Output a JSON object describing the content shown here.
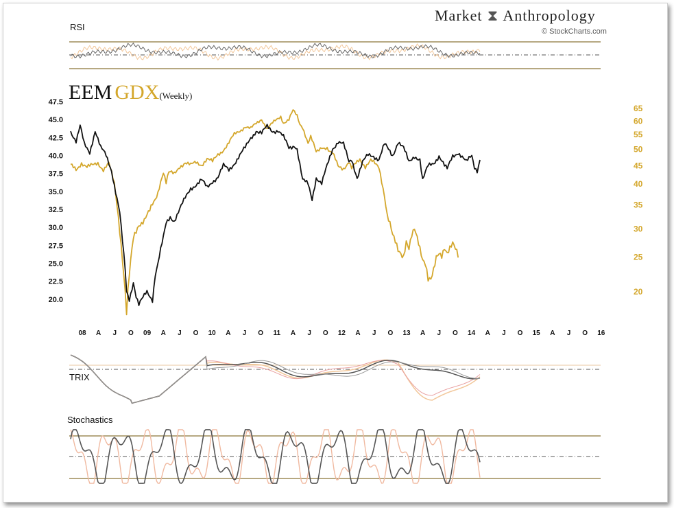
{
  "brand": {
    "name_left": "Market",
    "name_right": "Anthropology",
    "credit": "© StockCharts.com"
  },
  "colors": {
    "eem": "#111111",
    "gdx": "#d4a72c",
    "grid_gold": "#8a7436",
    "trix_signal_eem": "#999999",
    "trix_signal_gdx": "#e9a0a0"
  },
  "panels": {
    "rsi_label": "RSI",
    "trix_label": "TRIX",
    "stoch_label": "Stochastics"
  },
  "chart_data": [
    {
      "type": "line",
      "title_parts": [
        "EEM",
        "GDX",
        "(Weekly)"
      ],
      "left_axis_ticks": [
        47.5,
        45.0,
        42.5,
        40.0,
        37.5,
        35.0,
        32.5,
        30.0,
        27.5,
        25.0,
        22.5,
        20.0
      ],
      "right_axis_ticks": [
        65,
        60,
        55,
        50,
        45,
        40,
        35,
        30,
        25,
        20
      ],
      "x_tick_labels": [
        "08",
        "A",
        "J",
        "O",
        "09",
        "A",
        "J",
        "O",
        "10",
        "A",
        "J",
        "O",
        "11",
        "A",
        "J",
        "O",
        "12",
        "A",
        "J",
        "O",
        "13",
        "A",
        "J",
        "O",
        "14",
        "A",
        "J",
        "O",
        "15",
        "A",
        "J",
        "O",
        "16"
      ],
      "ylim_left": [
        17.5,
        47.5
      ],
      "ylim_right": [
        17,
        68
      ],
      "series": [
        {
          "name": "EEM",
          "values": [
            [
              0,
              43.5
            ],
            [
              4,
              42.0
            ],
            [
              7,
              44.0
            ],
            [
              10,
              41.5
            ],
            [
              14,
              40.5
            ],
            [
              18,
              43.5
            ],
            [
              22,
              41.0
            ],
            [
              26,
              40.0
            ],
            [
              30,
              38.0
            ],
            [
              34,
              34.0
            ],
            [
              36,
              32.0
            ],
            [
              38,
              28.0
            ],
            [
              40,
              24.0
            ],
            [
              41,
              21.0
            ],
            [
              43,
              20.0
            ],
            [
              46,
              22.5
            ],
            [
              48,
              20.5
            ],
            [
              50,
              19.2
            ],
            [
              52,
              19.8
            ],
            [
              56,
              21.0
            ],
            [
              60,
              20.0
            ],
            [
              62,
              23.5
            ],
            [
              64,
              25.0
            ],
            [
              66,
              26.8
            ],
            [
              68,
              28.5
            ],
            [
              70,
              30.5
            ],
            [
              73,
              31.5
            ],
            [
              76,
              31.0
            ],
            [
              80,
              32.5
            ],
            [
              84,
              34.0
            ],
            [
              88,
              35.5
            ],
            [
              92,
              36.0
            ],
            [
              96,
              36.5
            ],
            [
              100,
              35.5
            ],
            [
              104,
              36.5
            ],
            [
              108,
              37.0
            ],
            [
              112,
              38.5
            ],
            [
              116,
              38.0
            ],
            [
              120,
              39.0
            ],
            [
              124,
              40.0
            ],
            [
              128,
              41.0
            ],
            [
              132,
              42.5
            ],
            [
              136,
              43.5
            ],
            [
              140,
              43.0
            ],
            [
              144,
              44.0
            ],
            [
              148,
              43.5
            ],
            [
              152,
              43.5
            ],
            [
              156,
              42.5
            ],
            [
              160,
              41.0
            ],
            [
              164,
              41.5
            ],
            [
              166,
              41.0
            ],
            [
              170,
              36.5
            ],
            [
              174,
              36.0
            ],
            [
              177,
              34.0
            ],
            [
              180,
              37.0
            ],
            [
              184,
              36.0
            ],
            [
              188,
              38.5
            ],
            [
              192,
              41.0
            ],
            [
              196,
              42.0
            ],
            [
              200,
              41.5
            ],
            [
              204,
              39.0
            ],
            [
              206,
              39.5
            ],
            [
              210,
              37.0
            ],
            [
              214,
              39.0
            ],
            [
              218,
              40.0
            ],
            [
              222,
              40.0
            ],
            [
              226,
              39.5
            ],
            [
              230,
              41.5
            ],
            [
              234,
              40.5
            ],
            [
              236,
              40.0
            ],
            [
              240,
              42.0
            ],
            [
              244,
              41.0
            ],
            [
              248,
              39.0
            ],
            [
              252,
              40.0
            ],
            [
              256,
              39.5
            ],
            [
              258,
              36.5
            ],
            [
              262,
              38.5
            ],
            [
              266,
              39.0
            ],
            [
              270,
              40.0
            ],
            [
              274,
              38.5
            ],
            [
              276,
              38.0
            ],
            [
              280,
              40.0
            ],
            [
              284,
              40.5
            ],
            [
              288,
              39.5
            ],
            [
              290,
              39.0
            ],
            [
              294,
              40.0
            ],
            [
              296,
              38.5
            ],
            [
              298,
              38.0
            ],
            [
              300,
              39.5
            ]
          ]
        },
        {
          "name": "GDX",
          "values": [
            [
              0,
              45
            ],
            [
              4,
              44
            ],
            [
              8,
              46
            ],
            [
              12,
              44.5
            ],
            [
              16,
              45
            ],
            [
              20,
              46
            ],
            [
              24,
              44
            ],
            [
              28,
              45.5
            ],
            [
              32,
              40
            ],
            [
              34,
              35
            ],
            [
              36,
              30
            ],
            [
              38,
              25
            ],
            [
              40,
              20
            ],
            [
              41,
              17.5
            ],
            [
              43,
              22
            ],
            [
              46,
              28
            ],
            [
              50,
              31
            ],
            [
              54,
              32
            ],
            [
              58,
              33.5
            ],
            [
              62,
              36
            ],
            [
              64,
              38
            ],
            [
              66,
              41
            ],
            [
              68,
              43.5
            ],
            [
              70,
              40.5
            ],
            [
              72,
              43
            ],
            [
              76,
              42.5
            ],
            [
              80,
              45
            ],
            [
              84,
              46
            ],
            [
              88,
              45
            ],
            [
              92,
              46
            ],
            [
              96,
              45.5
            ],
            [
              100,
              47
            ],
            [
              104,
              46
            ],
            [
              108,
              48.5
            ],
            [
              112,
              50
            ],
            [
              116,
              52
            ],
            [
              120,
              55
            ],
            [
              124,
              56.5
            ],
            [
              128,
              58
            ],
            [
              132,
              57
            ],
            [
              136,
              59
            ],
            [
              140,
              61
            ],
            [
              144,
              57
            ],
            [
              148,
              59
            ],
            [
              152,
              61
            ],
            [
              154,
              62
            ],
            [
              156,
              59.5
            ],
            [
              160,
              60.5
            ],
            [
              163,
              64
            ],
            [
              166,
              62
            ],
            [
              168,
              59
            ],
            [
              170,
              58
            ],
            [
              174,
              52
            ],
            [
              176,
              54
            ],
            [
              180,
              49
            ],
            [
              184,
              51
            ],
            [
              188,
              50.5
            ],
            [
              190,
              49
            ],
            [
              192,
              48.5
            ],
            [
              196,
              45
            ],
            [
              200,
              44.5
            ],
            [
              204,
              46
            ],
            [
              206,
              44
            ],
            [
              208,
              45
            ],
            [
              212,
              47
            ],
            [
              216,
              45
            ],
            [
              220,
              46.5
            ],
            [
              224,
              45
            ],
            [
              226,
              44.5
            ],
            [
              228,
              41
            ],
            [
              230,
              37.5
            ],
            [
              232,
              33
            ],
            [
              234,
              31
            ],
            [
              236,
              28.5
            ],
            [
              240,
              26
            ],
            [
              244,
              25.5
            ],
            [
              246,
              28
            ],
            [
              248,
              26.5
            ],
            [
              250,
              28.5
            ],
            [
              252,
              29.5
            ],
            [
              256,
              26.5
            ],
            [
              258,
              25
            ],
            [
              260,
              24.5
            ],
            [
              262,
              22
            ],
            [
              264,
              21.5
            ],
            [
              266,
              22.5
            ],
            [
              268,
              24.5
            ],
            [
              270,
              25.5
            ],
            [
              272,
              25.5
            ],
            [
              274,
              27
            ],
            [
              276,
              26
            ],
            [
              278,
              26.5
            ],
            [
              280,
              27
            ],
            [
              282,
              26
            ],
            [
              284,
              25
            ]
          ]
        }
      ]
    }
  ]
}
